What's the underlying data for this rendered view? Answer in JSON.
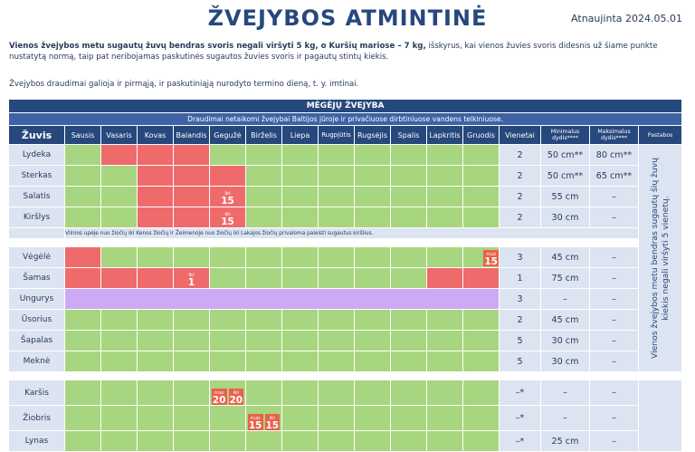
{
  "header": {
    "title": "ŽVEJYBOS ATMINTINĖ",
    "updated": "Atnaujinta 2024.05.01"
  },
  "intro": {
    "bold_part": "Vienos žvejybos metu sugautų žuvų bendras svoris negali viršyti 5 kg, o Kuršių mariose – 7 kg,",
    "rest": " išskyrus, kai vienos žuvies svoris didesnis už šiame punkte nustatytą normą, taip pat neribojamas paskutinės sugautos žuvies svoris ir pagautų stintų kiekis.",
    "line2": "Žvejybos draudimai galioja ir pirmąją, ir paskutiniąją nurodyto termino dieną, t. y. imtinai."
  },
  "table": {
    "section_title": "MĖGĖJŲ ŽVEJYBA",
    "subtitle": "Draudimai netaikomi žvejybai Baltijos jūroje ir privačiuose dirbtiniuose vandens telkiniuose.",
    "headers": {
      "fish": "Žuvis",
      "months": [
        "Sausis",
        "Vasaris",
        "Kovas",
        "Balandis",
        "Gegužė",
        "Birželis",
        "Liepa",
        "Rugpjūtis",
        "Rugsėjis",
        "Spalis",
        "Lapkritis",
        "Gruodis"
      ],
      "count": "Vienetai",
      "min_size": "Minimalus dydis****",
      "max_size": "Maksimalus dydis****",
      "notes": "Pastabos"
    },
    "side_note": "Vienos žvejybos metu bendras sugautų šių žuvų kiekis negali viršyti 5 vienetų.",
    "group_note": "Vilnios upėje nuo žiočių iki Kenos žiočių ir Žeimenoje nuo žiočių iki Lakajos žiočių privaloma paleisti sugautus kiršlius.",
    "rows": {
      "lydeka": {
        "name": "Lydeka",
        "count": "2",
        "min": "50 cm**",
        "max": "80 cm**"
      },
      "sterkas": {
        "name": "Sterkas",
        "count": "2",
        "min": "50 cm**",
        "max": "65 cm**"
      },
      "salatis": {
        "name": "Salatis",
        "count": "2",
        "min": "55 cm",
        "max": "–",
        "tag_small": "iki",
        "tag_num": "15"
      },
      "kirslys": {
        "name": "Kiršlys",
        "count": "2",
        "min": "30 cm",
        "max": "–",
        "tag_small": "iki",
        "tag_num": "15"
      },
      "vegele": {
        "name": "Vėgėlė",
        "count": "3",
        "min": "45 cm",
        "max": "–",
        "tag_small": "nuo",
        "tag_num": "15"
      },
      "samas": {
        "name": "Šamas",
        "count": "1",
        "min": "75 cm",
        "max": "–",
        "tag_small": "iki",
        "tag_num": "1"
      },
      "ungurys": {
        "name": "Ungurys",
        "count": "3",
        "min": "–",
        "max": "–"
      },
      "usorius": {
        "name": "Ūsorius",
        "count": "2",
        "min": "45 cm",
        "max": "–"
      },
      "sapalas": {
        "name": "Šapalas",
        "count": "5",
        "min": "30 cm",
        "max": "–"
      },
      "mekne": {
        "name": "Meknė",
        "count": "5",
        "min": "30 cm",
        "max": "–"
      },
      "karsis": {
        "name": "Karšis",
        "count": "–*",
        "min": "–",
        "max": "–",
        "tag1_small": "nuo",
        "tag1_num": "20",
        "tag2_small": "iki",
        "tag2_num": "20"
      },
      "ziobris": {
        "name": "Žiobris",
        "count": "–*",
        "min": "–",
        "max": "–",
        "tag1_small": "nuo",
        "tag1_num": "15",
        "tag2_small": "iki",
        "tag2_num": "15"
      },
      "lynas": {
        "name": "Lynas",
        "count": "–*",
        "min": "25 cm",
        "max": "–"
      }
    }
  },
  "colors": {
    "open": "#a8d57f",
    "closed": "#ef6b6b",
    "special": "#cdaaf3",
    "header": "#26487c",
    "tag": "#e8624a"
  }
}
